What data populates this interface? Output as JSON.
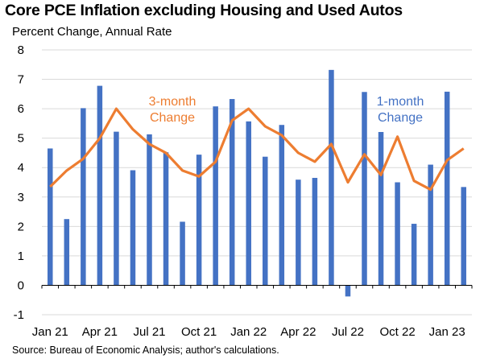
{
  "chart_data": {
    "type": "bar+line",
    "title": "Core PCE Inflation excluding Housing and Used Autos",
    "ylabel": "Percent Change, Annual Rate",
    "source": "Source: Bureau of Economic Analysis; author's calculations.",
    "ylim": [
      -1,
      8
    ],
    "yticks": [
      "-1",
      "0",
      "1",
      "2",
      "3",
      "4",
      "5",
      "6",
      "7",
      "8"
    ],
    "xtick_labels": [
      "Jan 21",
      "Apr 21",
      "Jul 21",
      "Oct 21",
      "Jan 22",
      "Apr 22",
      "Jul 22",
      "Oct 22",
      "Jan 23"
    ],
    "months": [
      "Jan 21",
      "Feb 21",
      "Mar 21",
      "Apr 21",
      "May 21",
      "Jun 21",
      "Jul 21",
      "Aug 21",
      "Sep 21",
      "Oct 21",
      "Nov 21",
      "Dec 21",
      "Jan 22",
      "Feb 22",
      "Mar 22",
      "Apr 22",
      "May 22",
      "Jun 22",
      "Jul 22",
      "Aug 22",
      "Sep 22",
      "Oct 22",
      "Nov 22",
      "Dec 22",
      "Jan 23",
      "Feb 23"
    ],
    "series": [
      {
        "name": "1-month Change",
        "label_lines": [
          "1-month",
          "Change"
        ],
        "kind": "bar",
        "color": "#4472C4",
        "values": [
          4.65,
          2.25,
          6.02,
          6.78,
          5.22,
          3.91,
          5.13,
          4.52,
          2.16,
          4.44,
          6.08,
          6.33,
          5.57,
          4.37,
          5.45,
          3.59,
          3.65,
          7.32,
          -0.38,
          6.57,
          5.21,
          3.5,
          2.09,
          4.1,
          6.58,
          3.34
        ]
      },
      {
        "name": "3-month Change",
        "label_lines": [
          "3-month",
          "Change"
        ],
        "kind": "line",
        "color": "#ED7D31",
        "values": [
          3.35,
          3.9,
          4.3,
          5.0,
          6.0,
          5.3,
          4.8,
          4.5,
          3.9,
          3.7,
          4.2,
          5.6,
          6.0,
          5.4,
          5.1,
          4.5,
          4.2,
          4.8,
          3.5,
          4.45,
          3.75,
          5.05,
          3.55,
          3.25,
          4.25,
          4.65
        ]
      }
    ]
  }
}
